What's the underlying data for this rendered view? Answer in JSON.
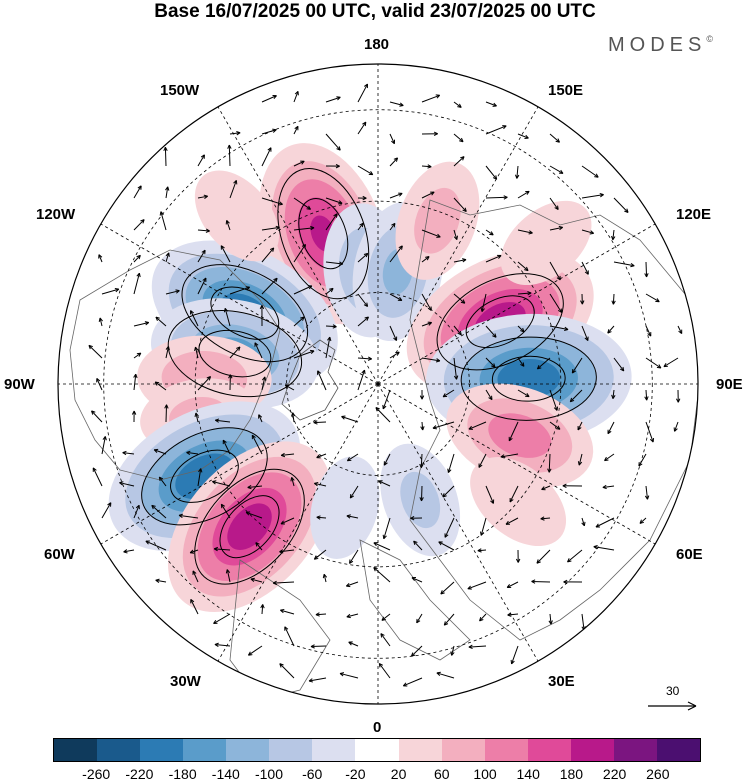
{
  "header": {
    "title": "Base 16/07/2025 00 UTC, valid 23/07/2025 00 UTC",
    "brand": "MODES",
    "brand_mark": "©"
  },
  "longitude_labels": [
    "180",
    "150E",
    "120E",
    "90E",
    "60E",
    "30E",
    "0",
    "30W",
    "60W",
    "90W",
    "120W",
    "150W"
  ],
  "wind_reference": {
    "value": "30"
  },
  "colorbar": {
    "ticks": [
      "-260",
      "-220",
      "-180",
      "-140",
      "-100",
      "-60",
      "-20",
      "20",
      "60",
      "100",
      "140",
      "180",
      "220",
      "260"
    ],
    "colors": [
      "#0f3a5c",
      "#1a5a8c",
      "#2c7bb4",
      "#5a9cca",
      "#8db5da",
      "#b7c7e4",
      "#dcdff0",
      "#ffffff",
      "#f7d5d9",
      "#f3afbf",
      "#ed7ea8",
      "#e04a99",
      "#b8198a",
      "#7b1580",
      "#4b0f70"
    ]
  },
  "anomaly_centers": [
    {
      "lon": 200,
      "lat": 55,
      "value": 180
    },
    {
      "lon": 242,
      "lat": 57,
      "value": -200
    },
    {
      "lon": 258,
      "lat": 58,
      "value": -150
    },
    {
      "lon": 268,
      "lat": 52,
      "value": 90
    },
    {
      "lon": 280,
      "lat": 50,
      "value": 60
    },
    {
      "lon": 298,
      "lat": 47,
      "value": -210
    },
    {
      "lon": 318,
      "lat": 48,
      "value": 200
    },
    {
      "lon": 186,
      "lat": 65,
      "value": -90
    },
    {
      "lon": 170,
      "lat": 65,
      "value": -100
    },
    {
      "lon": 160,
      "lat": 52,
      "value": 70
    },
    {
      "lon": 117,
      "lat": 60,
      "value": 200
    },
    {
      "lon": 92,
      "lat": 57,
      "value": -210
    },
    {
      "lon": 70,
      "lat": 57,
      "value": 120
    },
    {
      "lon": 50,
      "lat": 50,
      "value": 50
    },
    {
      "lon": 20,
      "lat": 63,
      "value": -60
    },
    {
      "lon": 345,
      "lat": 62,
      "value": -40
    },
    {
      "lon": 220,
      "lat": 42,
      "value": 40
    },
    {
      "lon": 130,
      "lat": 42,
      "value": 40
    }
  ]
}
